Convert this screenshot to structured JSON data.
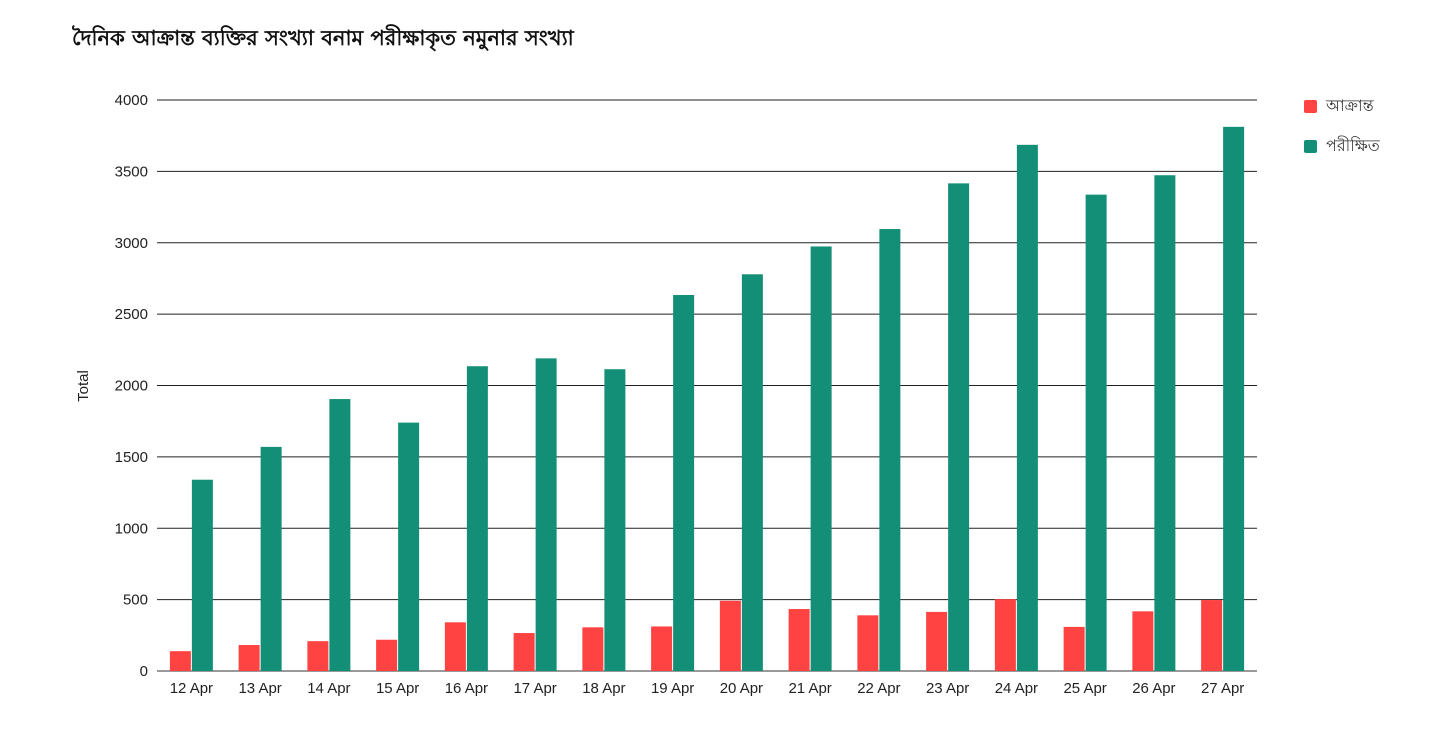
{
  "chart_data": {
    "type": "bar",
    "title": "দৈনিক আক্রান্ত ব্যক্তির সংখ্যা বনাম পরীক্ষাকৃত নমুনার সংখ্যা",
    "xlabel": "",
    "ylabel": "Total",
    "ylim": [
      0,
      4000
    ],
    "yticks": [
      "0",
      "500",
      "1000",
      "1500",
      "2000",
      "2500",
      "3000",
      "3500",
      "4000"
    ],
    "grid": true,
    "legend_position": "right",
    "categories": [
      "12 Apr",
      "13 Apr",
      "14 Apr",
      "15 Apr",
      "16 Apr",
      "17 Apr",
      "18 Apr",
      "19 Apr",
      "20 Apr",
      "21 Apr",
      "22 Apr",
      "23 Apr",
      "24 Apr",
      "25 Apr",
      "26 Apr",
      "27 Apr"
    ],
    "series": [
      {
        "name": "আক্রান্ত",
        "color": "#ff4242",
        "values": [
          139,
          182,
          209,
          219,
          341,
          266,
          306,
          312,
          492,
          434,
          390,
          414,
          503,
          309,
          418,
          497
        ]
      },
      {
        "name": "পরীক্ষিত",
        "color": "#148f77",
        "values": [
          1340,
          1570,
          1905,
          1740,
          2135,
          2190,
          2114,
          2634,
          2779,
          2974,
          3096,
          3416,
          3686,
          3337,
          3473,
          3812
        ]
      }
    ]
  }
}
